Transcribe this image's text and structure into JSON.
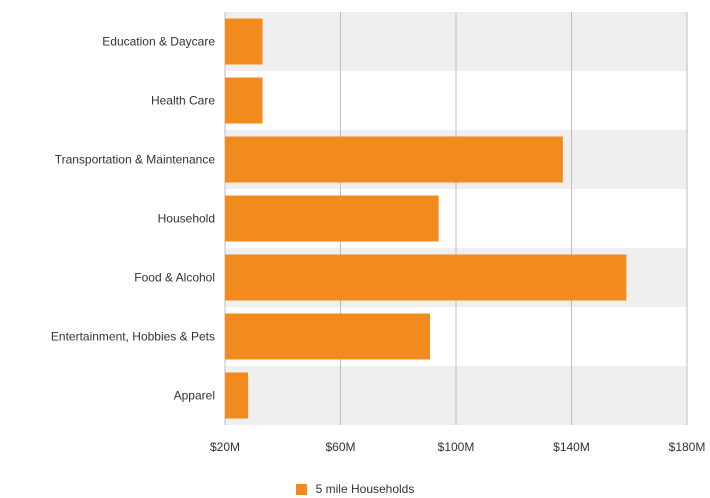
{
  "chart_data": {
    "type": "bar",
    "orientation": "horizontal",
    "categories": [
      "Education & Daycare",
      "Health Care",
      "Transportation & Maintenance",
      "Household",
      "Food & Alcohol",
      "Entertainment, Hobbies & Pets",
      "Apparel"
    ],
    "series": [
      {
        "name": "5 mile Households",
        "color": "#f28b1e",
        "values": [
          33,
          33,
          137,
          94,
          159,
          91,
          28
        ]
      }
    ],
    "x_ticks": [
      20,
      60,
      100,
      140,
      180
    ],
    "x_tick_labels": [
      "$20M",
      "$60M",
      "$100M",
      "$140M",
      "$180M"
    ],
    "xlim": [
      20,
      180
    ],
    "grid": true,
    "band_colors": [
      "#efefef",
      "#ffffff"
    ],
    "legend_position": "bottom-center"
  }
}
